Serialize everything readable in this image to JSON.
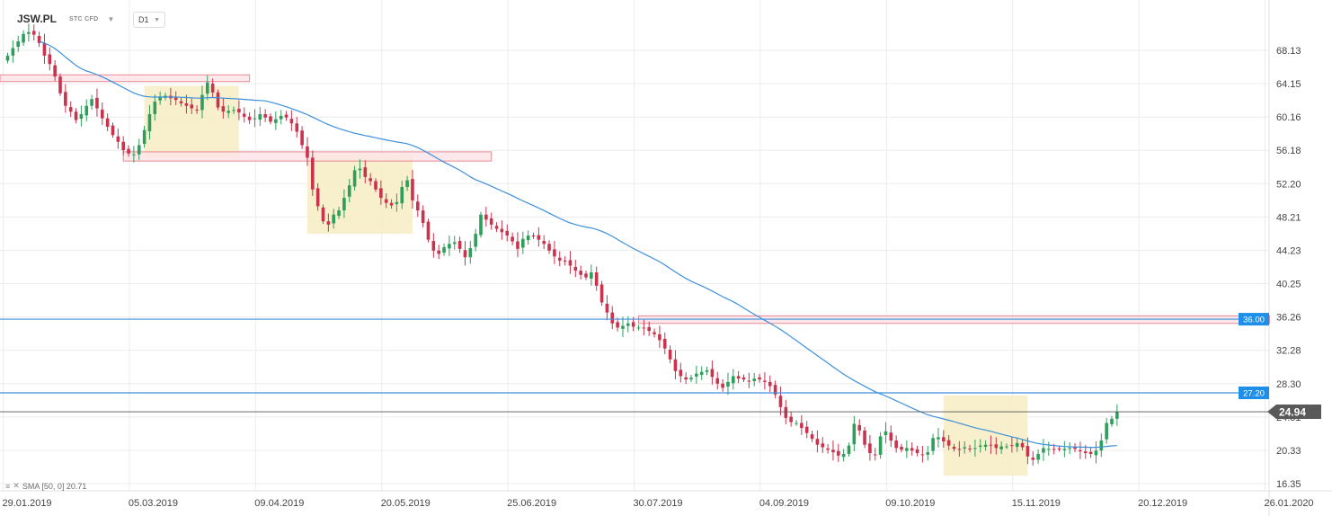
{
  "header": {
    "symbol": "JSW.PL",
    "subtitle": "STC CFD",
    "caret": "▼",
    "timeframe": "D1",
    "timeframe_caret": "▼"
  },
  "indicator": {
    "label": "SMA [50, 0] 20.71",
    "icon_glyph": "≡",
    "close_glyph": "✕"
  },
  "colors": {
    "bull": "#2e9e5b",
    "bear": "#c9334d",
    "sma": "#3d8fdc",
    "level_line": "#3d8fdc",
    "current_line": "#555555",
    "grid": "#ececec",
    "zone_fill": "#f7edc4",
    "res_fill": "#fde4e6",
    "res_stroke": "#e78a93"
  },
  "chart_data": {
    "type": "candlestick",
    "instrument": "JSW.PL",
    "timeframe": "D1",
    "y_ticks": [
      68.13,
      64.15,
      60.16,
      56.18,
      52.2,
      48.21,
      44.23,
      40.25,
      36.26,
      32.28,
      28.3,
      24.31,
      20.33,
      16.35
    ],
    "y_tick_labels": [
      "68.13",
      "64.15",
      "60.16",
      "56.18",
      "52.20",
      "48.21",
      "44.23",
      "40.25",
      "36.26",
      "32.28",
      "28.30",
      "24.31",
      "20.33",
      "16.35"
    ],
    "ylim": [
      15.8,
      72.0
    ],
    "x_labels": [
      "29.01.2019",
      "05.03.2019",
      "09.04.2019",
      "20.05.2019",
      "25.06.2019",
      "30.07.2019",
      "04.09.2019",
      "09.10.2019",
      "15.11.2019",
      "20.12.2019",
      "26.01.2020"
    ],
    "x_label_bar_index": [
      0,
      24,
      48,
      72,
      96,
      120,
      144,
      168,
      192,
      216,
      240
    ],
    "horizontal_levels": [
      {
        "value": 36.0,
        "label": "36.00"
      },
      {
        "value": 27.2,
        "label": "27.20"
      }
    ],
    "current_price": {
      "value": 24.94,
      "label": "24.94"
    },
    "sma_period": 50,
    "sma_last": 20.71,
    "closes": [
      67.5,
      68.4,
      69.2,
      70.1,
      70.3,
      70.0,
      69.0,
      67.5,
      66.5,
      65.0,
      63.0,
      61.5,
      60.8,
      59.8,
      60.5,
      61.5,
      62.3,
      61.2,
      60.0,
      59.0,
      58.0,
      57.2,
      56.2,
      55.8,
      55.7,
      56.8,
      58.6,
      60.5,
      62.0,
      62.6,
      62.7,
      62.4,
      62.2,
      61.8,
      61.5,
      61.2,
      61.0,
      62.8,
      64.3,
      63.1,
      61.3,
      60.8,
      60.9,
      61.0,
      60.7,
      60.2,
      59.8,
      60.0,
      60.5,
      60.1,
      59.6,
      59.9,
      60.3,
      60.1,
      59.4,
      58.4,
      56.8,
      55.3,
      51.5,
      49.5,
      47.7,
      47.3,
      48.5,
      49.0,
      50.5,
      52.0,
      53.8,
      54.0,
      53.0,
      52.5,
      51.5,
      50.5,
      49.9,
      49.6,
      50.0,
      51.8,
      52.6,
      50.2,
      49.0,
      47.5,
      45.5,
      44.2,
      43.8,
      44.6,
      45.0,
      45.2,
      44.4,
      43.4,
      44.5,
      46.2,
      48.5,
      47.9,
      47.3,
      46.8,
      46.4,
      46.0,
      45.3,
      44.4,
      45.6,
      46.0,
      45.9,
      45.5,
      45.0,
      44.2,
      43.5,
      43.0,
      42.9,
      42.4,
      41.8,
      41.3,
      41.0,
      41.6,
      40.0,
      38.0,
      36.8,
      35.5,
      35.0,
      35.2,
      35.5,
      35.1,
      35.0,
      34.9,
      34.6,
      34.2,
      33.5,
      32.5,
      31.2,
      29.8,
      29.2,
      28.8,
      29.0,
      29.5,
      29.7,
      29.9,
      29.1,
      28.3,
      27.8,
      28.5,
      29.2,
      28.9,
      28.8,
      28.6,
      28.9,
      28.8,
      28.5,
      28.0,
      27.0,
      25.5,
      24.2,
      23.7,
      23.6,
      23.0,
      22.4,
      21.7,
      21.0,
      20.7,
      20.4,
      20.1,
      19.7,
      19.9,
      20.9,
      23.5,
      22.7,
      21.0,
      20.0,
      19.8,
      22.0,
      22.6,
      21.5,
      20.6,
      20.4,
      20.6,
      20.3,
      20.0,
      19.8,
      20.1,
      21.8,
      21.9,
      21.4,
      20.9,
      20.5,
      20.4,
      20.7,
      20.5,
      20.6,
      20.9,
      21.0,
      20.9,
      20.6,
      20.8,
      20.8,
      20.9,
      21.2,
      20.7,
      19.6,
      19.2,
      19.9,
      20.6,
      20.5,
      20.4,
      20.5,
      20.5,
      20.6,
      20.5,
      20.2,
      20.0,
      19.9,
      20.3,
      21.5,
      23.6,
      24.1,
      24.9
    ],
    "zones": [
      {
        "type": "consolidation",
        "from_bar": 26,
        "to_bar": 44,
        "low": 55.3,
        "high": 63.9
      },
      {
        "type": "consolidation",
        "from_bar": 57,
        "to_bar": 77,
        "low": 46.2,
        "high": 55.7
      },
      {
        "type": "consolidation",
        "from_bar": 178,
        "to_bar": 194,
        "low": 17.3,
        "high": 26.9
      },
      {
        "type": "resistance",
        "from_bar": -1,
        "to_bar": 46,
        "low": 64.4,
        "high": 65.2
      },
      {
        "type": "resistance",
        "from_bar": 22,
        "to_bar": 92,
        "low": 54.9,
        "high": 56.0
      },
      {
        "type": "resistance",
        "from_bar": 120,
        "to_bar": 240,
        "low": 35.5,
        "high": 36.4
      }
    ]
  }
}
